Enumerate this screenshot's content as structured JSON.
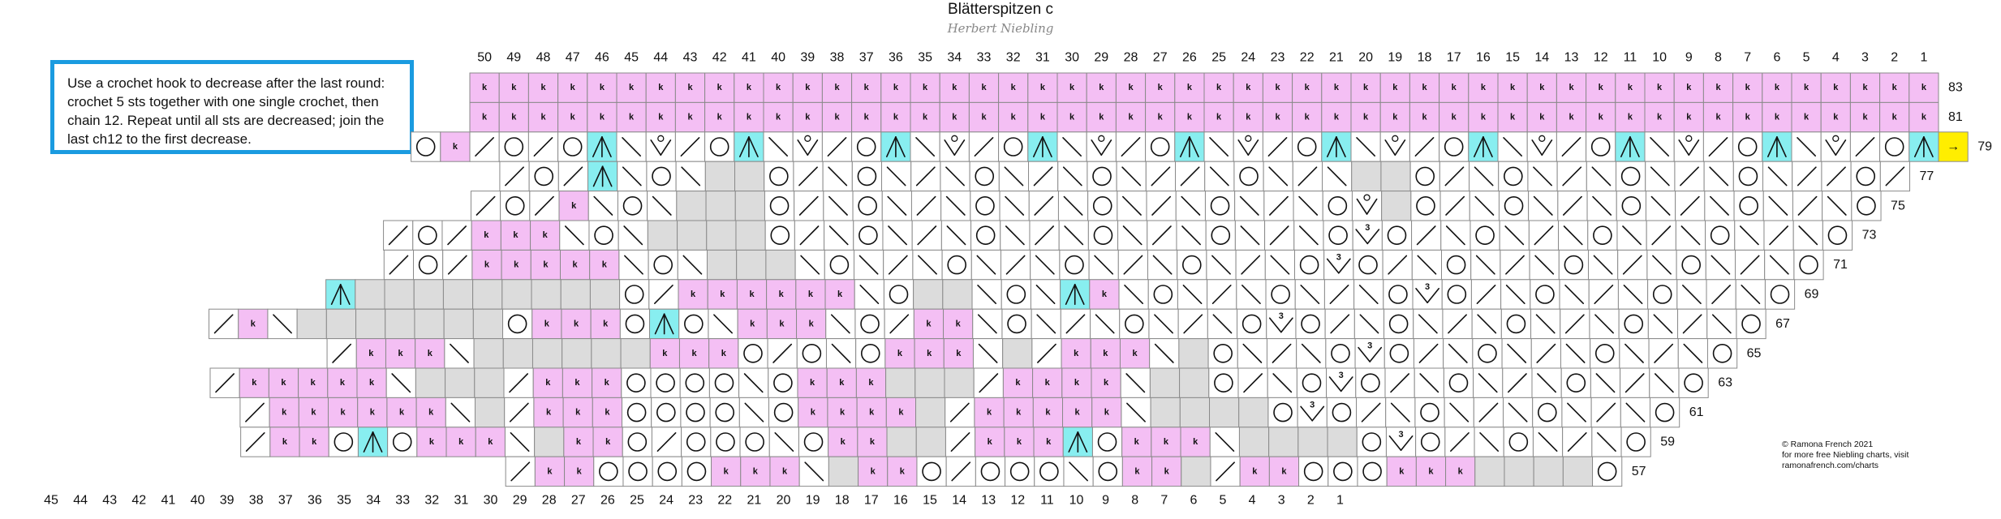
{
  "title": "Blätterspitzen c",
  "subtitle": "Herbert Niebling",
  "note": {
    "line1": "Use a crochet hook to decrease after the last round:",
    "line2": "crochet 5 sts together with one single crochet, then",
    "line3": "chain 12. Repeat until all sts are decreased; join the",
    "line4": "last ch12 to the first decrease."
  },
  "credit": {
    "line1": "© Ramona French 2021",
    "line2": "for more free Niebling charts, visit",
    "line3": "ramonafrench.com/charts"
  },
  "top_axis": [
    "50",
    "49",
    "48",
    "47",
    "46",
    "45",
    "44",
    "43",
    "42",
    "41",
    "40",
    "39",
    "38",
    "37",
    "36",
    "35",
    "34",
    "33",
    "32",
    "31",
    "30",
    "29",
    "28",
    "27",
    "26",
    "25",
    "24",
    "23",
    "22",
    "21",
    "20",
    "19",
    "18",
    "17",
    "16",
    "15",
    "14",
    "13",
    "12",
    "11",
    "10",
    "9",
    "8",
    "7",
    "6",
    "5",
    "4",
    "3",
    "2",
    "1"
  ],
  "bottom_axis": [
    "45",
    "44",
    "43",
    "42",
    "41",
    "40",
    "39",
    "38",
    "37",
    "36",
    "35",
    "34",
    "33",
    "32",
    "31",
    "30",
    "29",
    "28",
    "27",
    "26",
    "25",
    "24",
    "23",
    "22",
    "21",
    "20",
    "19",
    "18",
    "17",
    "16",
    "15",
    "14",
    "13",
    "12",
    "11",
    "10",
    "9",
    "8",
    "7",
    "6",
    "5",
    "4",
    "3",
    "2",
    "1"
  ],
  "round_labels": [
    {
      "round": "83",
      "row": 0
    },
    {
      "round": "81",
      "row": 1
    },
    {
      "round": "79",
      "row": 2
    },
    {
      "round": "77",
      "row": 3
    },
    {
      "round": "75",
      "row": 4
    },
    {
      "round": "73",
      "row": 5
    },
    {
      "round": "71",
      "row": 6
    },
    {
      "round": "69",
      "row": 7
    },
    {
      "round": "67",
      "row": 8
    },
    {
      "round": "65",
      "row": 9
    },
    {
      "round": "63",
      "row": 10
    },
    {
      "round": "61",
      "row": 11
    },
    {
      "round": "59",
      "row": 12
    },
    {
      "round": "57",
      "row": 13
    }
  ],
  "symbols": {
    "knit_letter": "k",
    "triple_dec_number": "3",
    "start_arrow": "→"
  },
  "colors": {
    "knit_fill": "#f4bff4",
    "dec_fill": "#88eef0",
    "nostitch_fill": "#dcdcdc",
    "start_fill": "#ffee00",
    "grid": "#8a8a8a",
    "note_border": "#1a9be0"
  },
  "rows": [
    {
      "round": "83",
      "cells": "KKKKKKKKKKKKKKKKKKKKKKKKKKKKKKKKKKKKKKKKKKKKKKKKKK"
    },
    {
      "round": "81",
      "cells": "KKKKKKKKKKKKKKKKKKKKKKKKKKKKKKKKKKKKKKKKKKKKKKKKKK"
    },
    {
      "round": "79",
      "cells": "OK/O/OA\\V/OA\\V/OA\\V/OA\\V/OA\\V/OA\\V/OA\\V/OA\\V/OA\\V/OA>"
    },
    {
      "round": "77",
      "cells": "/O/A\\O\\..O/\\O\\/\\O\\/\\O\\//\\O\\/\\..O/\\O\\/\\O\\/\\O\\//O/"
    },
    {
      "round": "75",
      "cells": "/O/K\\O\\...O/\\O\\/\\O\\/\\O\\/\\O\\/\\OV.O/\\O\\/\\O\\/\\O\\/\\O"
    },
    {
      "round": "73",
      "cells": "/O/KKK\\O\\....O/\\O\\/\\O\\/\\O\\/\\O\\/\\O3O/\\O\\/\\O\\/\\O\\/\\O"
    },
    {
      "round": "71",
      "cells": "/O/KKKKK\\O\\...\\O\\/\\O\\/\\O\\/\\O\\/\\O3O/\\O\\/\\O\\/\\O\\/\\O"
    },
    {
      "round": "69",
      "cells": "A.........O/KKKKKK\\O..\\O\\AK\\O\\/\\O\\/\\O3O/\\O\\/\\O\\/\\O"
    },
    {
      "round": "67",
      "cells": "/K\\.......OKKKOAO\\KKK\\O/KK\\O\\/\\O\\/\\O3O/\\O\\/\\O\\/\\O\\/\\O"
    },
    {
      "round": "65",
      "cells": "/KKK\\......KKKO/O\\OKKK\\./KKK\\.O\\/\\O3O/\\O\\/\\O\\/\\O"
    },
    {
      "round": "63",
      "cells": "/KKKKK\\.../KKKOOOO\\OKKK.../KKKK\\..O/\\O3O/\\O\\/\\O\\/\\O"
    },
    {
      "round": "61",
      "cells": "/KKKKKK\\./KKKOOOO\\OKKKK./KKKKK\\....O3O/\\O\\/\\O\\/\\O"
    },
    {
      "round": "59",
      "cells": "/KKOAOKKK\\.KKO/OOO\\OKK../KKKAOKKK\\....O3O/\\O\\/\\O"
    },
    {
      "round": "57",
      "cells": "/KKOOOOKKK\\.KKO/OOO\\OKK./KKOOOKKK....O"
    }
  ]
}
